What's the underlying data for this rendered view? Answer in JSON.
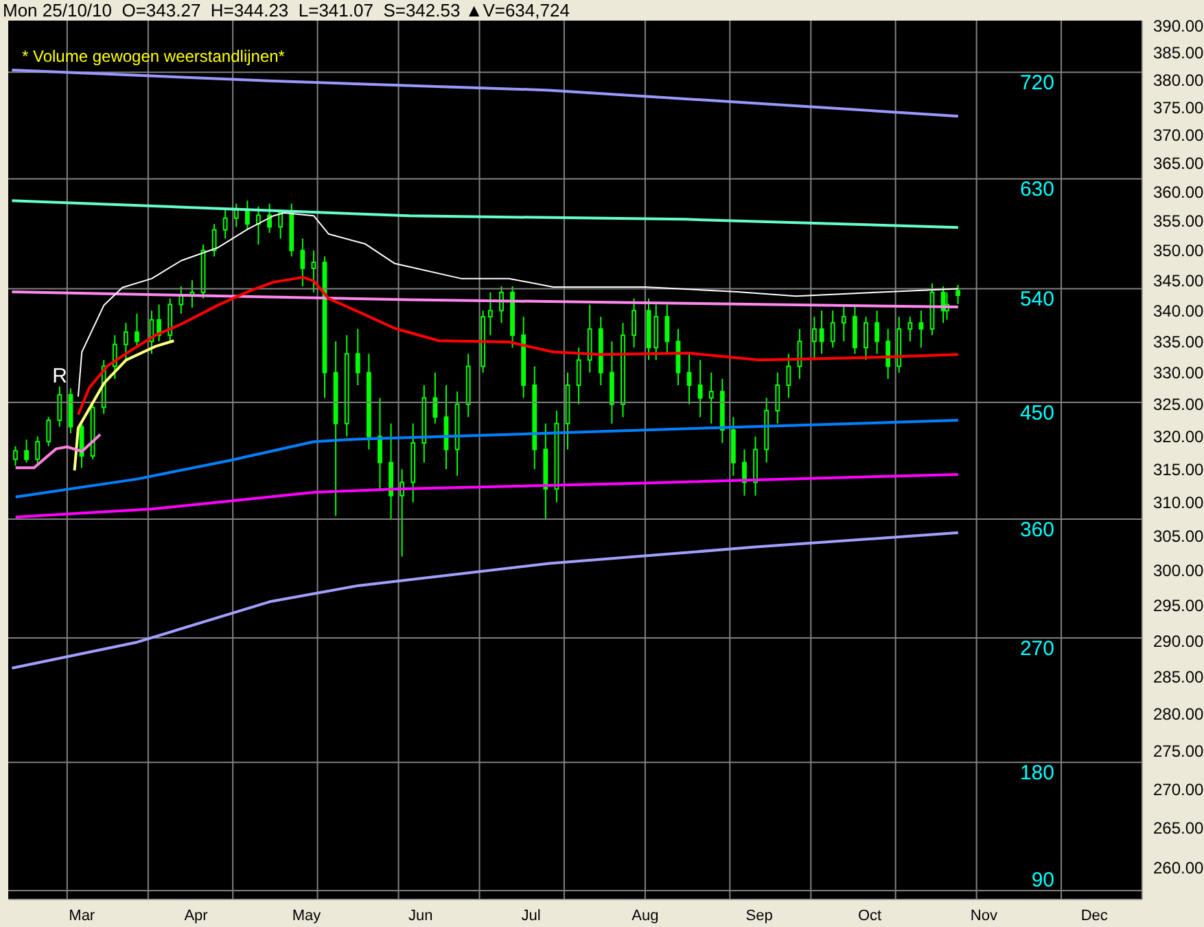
{
  "chart_data": {
    "type": "candlestick",
    "title": "Mon 25/10/10  O=343.27  H=344.23  L=341.07  S=342.53 ▲V=634,724",
    "subtitle": "* Volume gewogen weerstandlijnen*",
    "color": "#00ff00",
    "log": true,
    "x": [
      "--02-11",
      "--02-14",
      "--02-17",
      "--02-20",
      "--02-23",
      "--02-26",
      "--03-01",
      "--03-04",
      "--03-07",
      "--03-10",
      "--03-13",
      "--03-16",
      "--03-20",
      "--03-22",
      "--03-25",
      "--03-28",
      "--03-31",
      "--04-03",
      "--04-06",
      "--04-09",
      "--04-12",
      "--04-15",
      "--04-18",
      "--04-21",
      "--04-24",
      "--04-27",
      "--04-30",
      "--05-03",
      "--05-06",
      "--05-09",
      "--05-12",
      "--05-15",
      "--05-18",
      "--05-21",
      "--05-24",
      "--05-27",
      "--05-30",
      "--06-02",
      "--06-05",
      "--06-08",
      "--06-11",
      "--06-14",
      "--06-18",
      "--06-20",
      "--06-23",
      "--06-26",
      "--06-29",
      "--07-02",
      "--07-05",
      "--07-08",
      "--07-11",
      "--07-14",
      "--07-17",
      "--07-20",
      "--07-23",
      "--07-26",
      "--07-29",
      "--08-02",
      "--08-04",
      "--08-07",
      "--08-10",
      "--08-13",
      "--08-16",
      "--08-19",
      "--08-22",
      "--08-25",
      "--08-28",
      "--08-31",
      "--09-03",
      "--09-06",
      "--09-09",
      "--09-12",
      "--09-16",
      "--09-18",
      "--09-21",
      "--09-24",
      "--09-27",
      "--09-30",
      "--10-03",
      "--10-06",
      "--10-09",
      "--10-12",
      "--10-15",
      "--10-18",
      "--10-21",
      "--10-22",
      "--10-25"
    ],
    "ohlc": [
      [
        316.5,
        318.5,
        315.5,
        317.8
      ],
      [
        317.8,
        319.5,
        316,
        316.5
      ],
      [
        316.5,
        320,
        315.8,
        319.2
      ],
      [
        319.2,
        323,
        318.5,
        322.5
      ],
      [
        322.5,
        327.8,
        321.5,
        326.5
      ],
      [
        326.5,
        327.5,
        320.5,
        321.5
      ],
      [
        321.5,
        322,
        315.2,
        317
      ],
      [
        317,
        325,
        316.5,
        324.5
      ],
      [
        324.5,
        332,
        323.5,
        331
      ],
      [
        331,
        336,
        329,
        334.5
      ],
      [
        334.5,
        338,
        332,
        336.5
      ],
      [
        336.5,
        339.5,
        334,
        335
      ],
      [
        335,
        340,
        333,
        338.5
      ],
      [
        338.5,
        341,
        335,
        336
      ],
      [
        336,
        342,
        335,
        341
      ],
      [
        341,
        344,
        339.5,
        342.5
      ],
      [
        342.5,
        345,
        340.5,
        343
      ],
      [
        343,
        351,
        342,
        350
      ],
      [
        350,
        354.5,
        349,
        353.5
      ],
      [
        353.5,
        357,
        352,
        355.5
      ],
      [
        355.5,
        358,
        354,
        357
      ],
      [
        357,
        358.5,
        353.5,
        354.5
      ],
      [
        354.5,
        357.5,
        351,
        356
      ],
      [
        356,
        358,
        353,
        354
      ],
      [
        354,
        357,
        352,
        356.5
      ],
      [
        356.5,
        358,
        349,
        350
      ],
      [
        350,
        352,
        344,
        347
      ],
      [
        347,
        350,
        343,
        348
      ],
      [
        348,
        349,
        326,
        330
      ],
      [
        330,
        335,
        308,
        322
      ],
      [
        322,
        336,
        320,
        333
      ],
      [
        333,
        337,
        328,
        330
      ],
      [
        330,
        333,
        318,
        320
      ],
      [
        320,
        326,
        312,
        316
      ],
      [
        316,
        322,
        307.5,
        311
      ],
      [
        311,
        315,
        302,
        313
      ],
      [
        313,
        322,
        310,
        319
      ],
      [
        319,
        328,
        316,
        326
      ],
      [
        326,
        330,
        322,
        323
      ],
      [
        323,
        328,
        315,
        318
      ],
      [
        318,
        327,
        314,
        325
      ],
      [
        325,
        333,
        323,
        331
      ],
      [
        331,
        340,
        330,
        339
      ],
      [
        339,
        343,
        336,
        340
      ],
      [
        340,
        344,
        338,
        343
      ],
      [
        343,
        344,
        334,
        336
      ],
      [
        336,
        339,
        326,
        328
      ],
      [
        328,
        331,
        315,
        318
      ],
      [
        318,
        322,
        307.5,
        312
      ],
      [
        312,
        324,
        310,
        322
      ],
      [
        322,
        330,
        318,
        328
      ],
      [
        328,
        334,
        325,
        332
      ],
      [
        332,
        341,
        330,
        337
      ],
      [
        337,
        339,
        328,
        330
      ],
      [
        330,
        335,
        322,
        325
      ],
      [
        325,
        338,
        323,
        336
      ],
      [
        336,
        342,
        334,
        340
      ],
      [
        340,
        342,
        332,
        334
      ],
      [
        334,
        341,
        332,
        339
      ],
      [
        339,
        341,
        333,
        335
      ],
      [
        335,
        337,
        328,
        330
      ],
      [
        330,
        333,
        325,
        328
      ],
      [
        328,
        332,
        323,
        326
      ],
      [
        326,
        330,
        322,
        327
      ],
      [
        327,
        329,
        319,
        321
      ],
      [
        321,
        323,
        314,
        316
      ],
      [
        316,
        318,
        311,
        313
      ],
      [
        313,
        320,
        311,
        318
      ],
      [
        318,
        326,
        316,
        324
      ],
      [
        324,
        330,
        322,
        328
      ],
      [
        328,
        333,
        326,
        331
      ],
      [
        331,
        337,
        329,
        335
      ],
      [
        335,
        339,
        332,
        337
      ],
      [
        337,
        340,
        333,
        335
      ],
      [
        335,
        340,
        334,
        338
      ],
      [
        338,
        341,
        335,
        339
      ],
      [
        339,
        341,
        333,
        334
      ],
      [
        334,
        339,
        332,
        338
      ],
      [
        338,
        340,
        333,
        335
      ],
      [
        335,
        337,
        329,
        331
      ],
      [
        331,
        339,
        330,
        337
      ],
      [
        337,
        339,
        335,
        338
      ],
      [
        338,
        340,
        334,
        337
      ],
      [
        337,
        344.5,
        336,
        343
      ],
      [
        343,
        344,
        338,
        340
      ],
      [
        340,
        343,
        338.5,
        341
      ],
      [
        343.27,
        344.23,
        341.07,
        342.53
      ]
    ],
    "series": [
      {
        "type": "line",
        "color": "#9999ff",
        "x": [
          "--02-10",
          "--04-21",
          "--07-06",
          "--10-25"
        ],
        "values": [
          381.8,
          379.8,
          378.1,
          373.4
        ]
      },
      {
        "type": "line",
        "color": "#66ffcc",
        "x": [
          "--02-10",
          "--05-29",
          "--08-12",
          "--10-25"
        ],
        "values": [
          358.5,
          355.9,
          355.3,
          353.9
        ]
      },
      {
        "type": "line",
        "color": "#ff88ee",
        "x": [
          "--02-10",
          "--05-29",
          "--08-12",
          "--10-25"
        ],
        "values": [
          343.1,
          341.8,
          341.2,
          340.6
        ]
      },
      {
        "type": "line",
        "color": "#ffffff",
        "x": [
          "--02-28",
          "--03-01",
          "--03-07",
          "--03-12",
          "--03-20",
          "--03-28",
          "--04-07",
          "--04-15",
          "--04-22",
          "--04-25",
          "--05-03",
          "--05-07",
          "--05-17",
          "--05-25",
          "--06-12",
          "--06-25",
          "--07-07",
          "--08-01",
          "--08-26",
          "--09-11",
          "--10-06",
          "--10-25"
        ],
        "values": [
          326.2,
          333.3,
          340.9,
          343.8,
          345.3,
          348.3,
          350.5,
          353.6,
          355.9,
          356.4,
          355.9,
          352.8,
          351.1,
          347.8,
          345.3,
          345.3,
          343.9,
          343.9,
          343.1,
          342.4,
          343.1,
          343.6
        ]
      },
      {
        "type": "line",
        "color": "#ff0000",
        "x": [
          "--02-28",
          "--03-03",
          "--03-08",
          "--03-15",
          "--03-21",
          "--03-28",
          "--04-07",
          "--04-15",
          "--04-22",
          "--04-30",
          "--05-03",
          "--05-07",
          "--05-17",
          "--05-25",
          "--06-06",
          "--06-25",
          "--07-07",
          "--07-20",
          "--08-13",
          "--09-01",
          "--09-30",
          "--10-25"
        ],
        "values": [
          323.4,
          327.6,
          331.1,
          333.8,
          336.0,
          337.8,
          340.9,
          343.1,
          344.7,
          345.5,
          344.9,
          342.0,
          339.3,
          337.1,
          335.1,
          334.9,
          333.3,
          332.9,
          333.1,
          332.0,
          332.4,
          332.9
        ]
      },
      {
        "type": "line",
        "color": "#ffff80",
        "x": [
          "--02-27",
          "--02-28",
          "--03-07",
          "--03-13",
          "--03-21",
          "--03-26"
        ],
        "values": [
          314.8,
          321.3,
          328.3,
          332.0,
          334.2,
          335.1
        ]
      },
      {
        "type": "line",
        "color": "#ff80e0",
        "x": [
          "--02-11",
          "--02-16",
          "--02-22",
          "--02-25",
          "--03-01",
          "--03-06"
        ],
        "values": [
          315.2,
          315.2,
          318.1,
          318.4,
          317.7,
          320.3
        ]
      },
      {
        "type": "line",
        "color": "#0080ff",
        "x": [
          "--02-11",
          "--03-16",
          "--04-10",
          "--05-03",
          "--05-15",
          "--06-25",
          "--08-01",
          "--10-25"
        ],
        "values": [
          310.8,
          313.5,
          316.3,
          319.2,
          319.6,
          320.3,
          321.0,
          322.5
        ]
      },
      {
        "type": "line",
        "color": "#ff00ff",
        "x": [
          "--02-11",
          "--03-20",
          "--05-03",
          "--05-25",
          "--06-25",
          "--08-01",
          "--10-25"
        ],
        "values": [
          307.8,
          309.0,
          311.5,
          312.0,
          312.4,
          312.9,
          314.2
        ]
      },
      {
        "type": "line",
        "color": "#a0a0ff",
        "x": [
          "--02-10",
          "--03-16",
          "--04-21",
          "--05-15",
          "--07-06",
          "--08-31",
          "--10-25"
        ],
        "values": [
          286.2,
          289.8,
          295.5,
          297.8,
          301.0,
          303.4,
          305.5
        ]
      }
    ],
    "xlim": [
      "--02-09",
      "--12-14"
    ],
    "xticks": [
      {
        "value": "--03-01",
        "label": "Mar"
      },
      {
        "value": "--04-01",
        "label": "Apr"
      },
      {
        "value": "--05-01",
        "label": "May"
      },
      {
        "value": "--06-01",
        "label": "Jun"
      },
      {
        "value": "--07-01",
        "label": "Jul"
      },
      {
        "value": "--08-01",
        "label": "Aug"
      },
      {
        "value": "--09-01",
        "label": "Sep"
      },
      {
        "value": "--10-01",
        "label": "Oct"
      },
      {
        "value": "--11-01",
        "label": "Nov"
      },
      {
        "value": "--12-01",
        "label": "Dec"
      }
    ],
    "ylim": [
      256,
      391
    ],
    "yticks": [
      {
        "value": 260,
        "label": "260.00"
      },
      {
        "value": 265,
        "label": "265.00"
      },
      {
        "value": 270,
        "label": "270.00"
      },
      {
        "value": 275,
        "label": "275.00"
      },
      {
        "value": 280,
        "label": "280.00"
      },
      {
        "value": 285,
        "label": "285.00"
      },
      {
        "value": 290,
        "label": "290.00"
      },
      {
        "value": 295,
        "label": "295.00"
      },
      {
        "value": 300,
        "label": "300.00"
      },
      {
        "value": 305,
        "label": "305.00"
      },
      {
        "value": 310,
        "label": "310.00"
      },
      {
        "value": 315,
        "label": "315.00"
      },
      {
        "value": 320,
        "label": "320.00"
      },
      {
        "value": 325,
        "label": "325.00"
      },
      {
        "value": 330,
        "label": "330.00"
      },
      {
        "value": 335,
        "label": "335.00"
      },
      {
        "value": 340,
        "label": "340.00"
      },
      {
        "value": 345,
        "label": "345.00"
      },
      {
        "value": 350,
        "label": "350.00"
      },
      {
        "value": 355,
        "label": "355.00"
      },
      {
        "value": 360,
        "label": "360.00"
      },
      {
        "value": 365,
        "label": "365.00"
      },
      {
        "value": 370,
        "label": "370.00"
      },
      {
        "value": 375,
        "label": "375.00"
      },
      {
        "value": 380,
        "label": "380.00"
      },
      {
        "value": 385,
        "label": "385.00"
      },
      {
        "value": 390,
        "label": "390.00"
      }
    ],
    "ref_lines": [
      {
        "axis": "y",
        "value": 381.4,
        "color": "#808080"
      },
      {
        "axis": "y",
        "value": 362.3,
        "color": "#808080"
      },
      {
        "axis": "y",
        "value": 343.6,
        "color": "#808080"
      },
      {
        "axis": "y",
        "value": 325.3,
        "color": "#808080"
      },
      {
        "axis": "y",
        "value": 307.5,
        "color": "#808080"
      },
      {
        "axis": "y",
        "value": 290.4,
        "color": "#808080"
      },
      {
        "axis": "y",
        "value": 273.5,
        "color": "#808080"
      },
      {
        "axis": "y",
        "value": 257.1,
        "color": "#808080"
      },
      {
        "axis": "x",
        "value": "--02-25",
        "color": "#808080"
      },
      {
        "axis": "x",
        "value": "--03-19",
        "color": "#808080"
      },
      {
        "axis": "x",
        "value": "--04-11",
        "color": "#808080"
      },
      {
        "axis": "x",
        "value": "--05-04",
        "color": "#808080"
      },
      {
        "axis": "x",
        "value": "--05-26",
        "color": "#808080"
      },
      {
        "axis": "x",
        "value": "--06-17",
        "color": "#808080"
      },
      {
        "axis": "x",
        "value": "--07-10",
        "color": "#808080"
      },
      {
        "axis": "x",
        "value": "--08-01",
        "color": "#808080"
      },
      {
        "axis": "x",
        "value": "--08-24",
        "color": "#808080"
      },
      {
        "axis": "x",
        "value": "--09-15",
        "color": "#808080"
      },
      {
        "axis": "x",
        "value": "--10-08",
        "color": "#808080"
      },
      {
        "axis": "x",
        "value": "--10-30",
        "color": "#808080"
      },
      {
        "axis": "x",
        "value": "--11-22",
        "color": "#808080"
      }
    ],
    "annotations": [
      {
        "text": "R",
        "x": "--02-23",
        "y": 327.8
      },
      "720",
      "630",
      "540",
      "450",
      "360",
      "270",
      "180",
      "90"
    ]
  }
}
